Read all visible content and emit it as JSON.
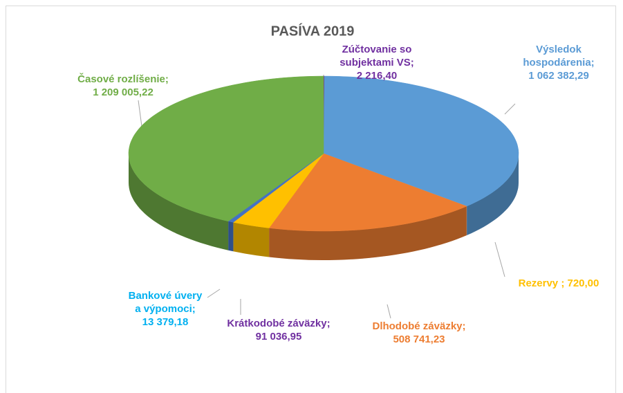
{
  "chart_data": {
    "type": "pie3d",
    "title": "PASÍVA 2019",
    "categories": [
      "Zúčtovanie so subjektami VS;",
      "Výsledok hospodárenia;",
      "Rezervy ;",
      "Dlhodobé záväzky;",
      "Krátkodobé záväzky;",
      "Bankové úvery a výpomoci;",
      "Časové rozlíšenie;"
    ],
    "values": [
      2216.4,
      1062382.29,
      720.0,
      508741.23,
      91036.95,
      13379.18,
      1209005.22
    ],
    "value_labels": [
      "2 216,40",
      "1 062 382,29",
      "720,00",
      "508 741,23",
      "91 036,95",
      "13 379,18",
      "1 209 005,22"
    ],
    "colors": [
      "#7030a0",
      "#5b9bd5",
      "#a5a5a5",
      "#ed7d31",
      "#ffc000",
      "#4472c4",
      "#70ad47"
    ],
    "label_colors": [
      "#7030a0",
      "#5b9bd5",
      "#ffc000",
      "#ed7d31",
      "#7030a0",
      "#00b0f0",
      "#70ad47"
    ]
  }
}
